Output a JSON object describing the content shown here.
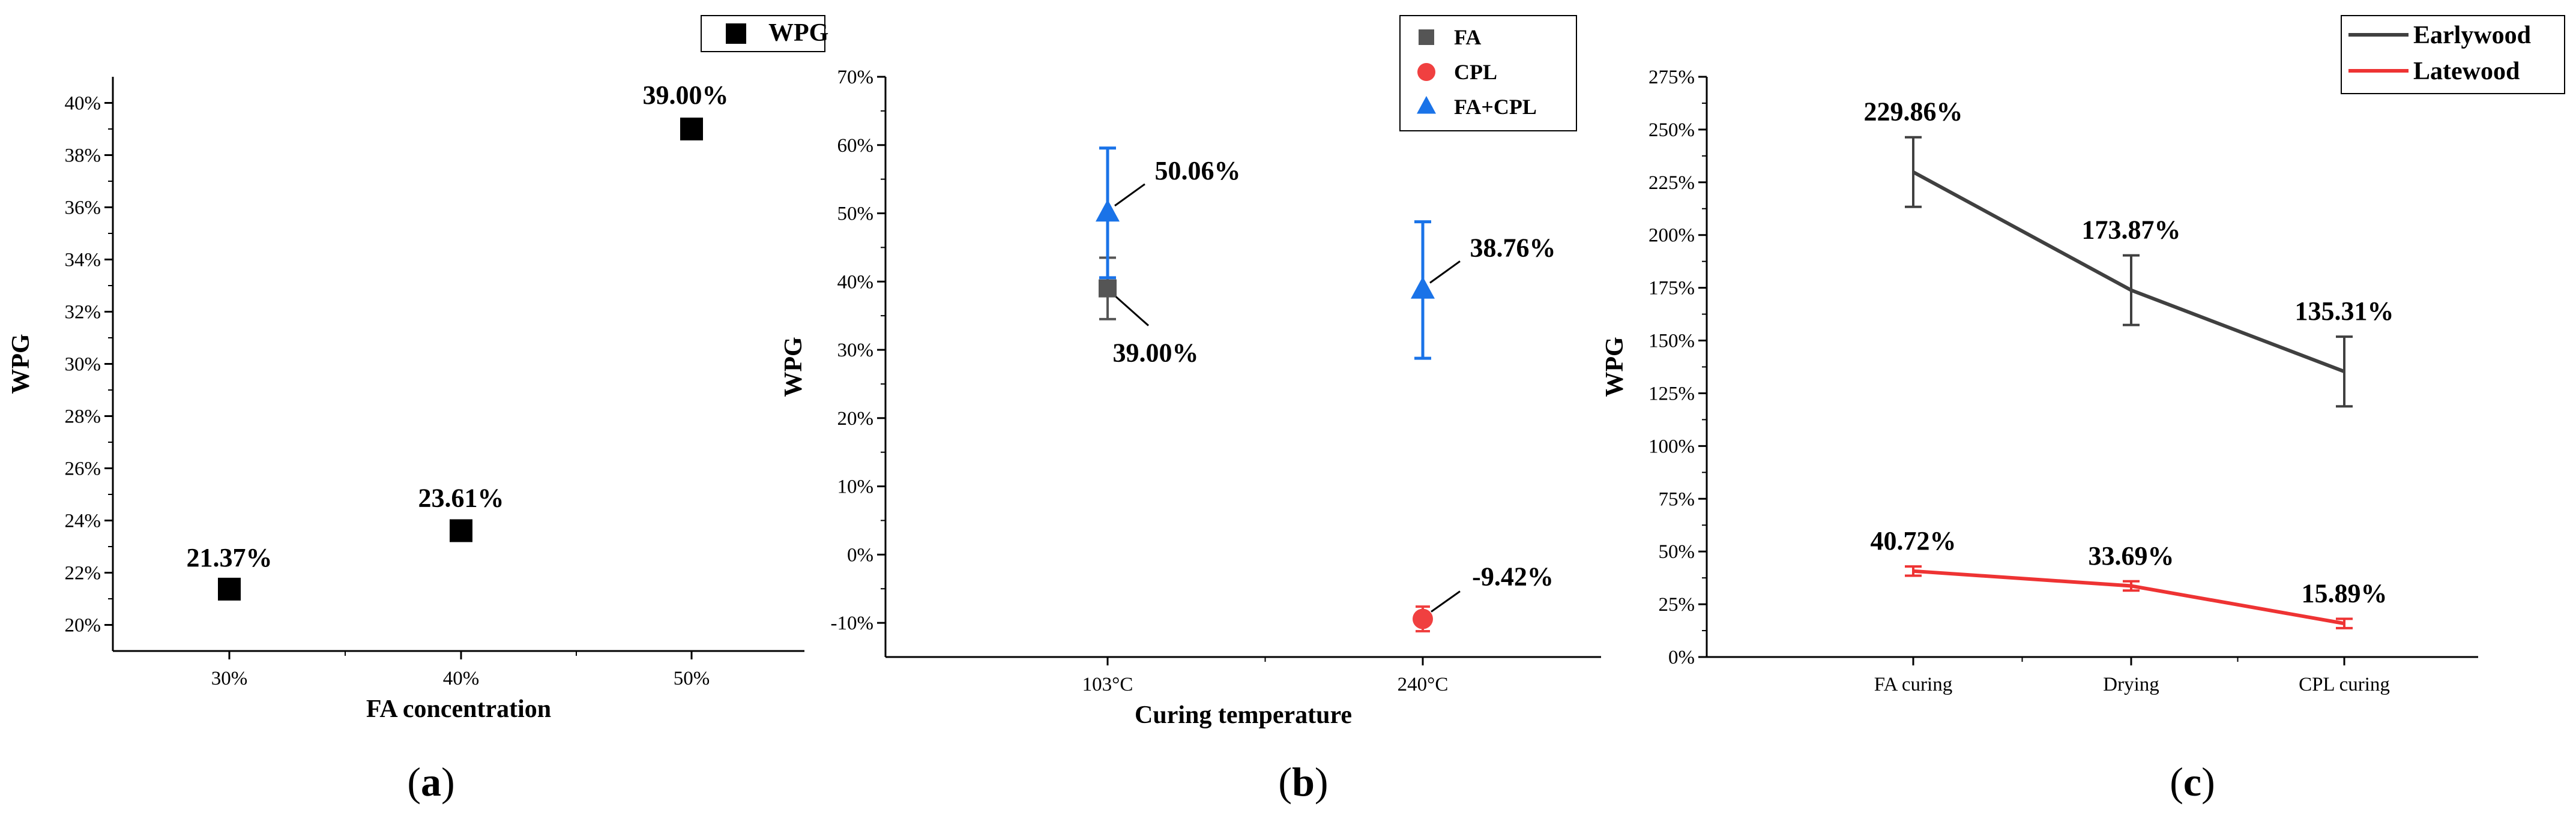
{
  "chart_data": [
    {
      "panel": "a",
      "type": "scatter",
      "xlabel": "FA concentration",
      "ylabel": "WPG",
      "categories": [
        "30%",
        "40%",
        "50%"
      ],
      "ylim": [
        0.19,
        0.41
      ],
      "yticks": [
        0.2,
        0.22,
        0.24,
        0.26,
        0.28,
        0.3,
        0.32,
        0.34,
        0.36,
        0.38,
        0.4
      ],
      "ytick_labels": [
        "20%",
        "22%",
        "24%",
        "26%",
        "28%",
        "30%",
        "32%",
        "34%",
        "36%",
        "38%",
        "40%"
      ],
      "legend": [
        "WPG"
      ],
      "legend_position": "top-right",
      "colors": {
        "marker": "#000000"
      },
      "series": [
        {
          "name": "WPG",
          "values": [
            0.2137,
            0.2361,
            0.39
          ],
          "labels": [
            "21.37%",
            "23.61%",
            "39.00%"
          ]
        }
      ]
    },
    {
      "panel": "b",
      "type": "scatter",
      "xlabel": "Curing temperature",
      "ylabel": "WPG",
      "categories": [
        "103°C",
        "240°C"
      ],
      "ylim": [
        -0.15,
        0.7
      ],
      "yticks": [
        -0.1,
        0.0,
        0.1,
        0.2,
        0.3,
        0.4,
        0.5,
        0.6,
        0.7
      ],
      "ytick_labels": [
        "-10%",
        "0%",
        "10%",
        "20%",
        "30%",
        "40%",
        "50%",
        "60%",
        "70%"
      ],
      "legend": [
        "FA",
        "CPL",
        "FA+CPL"
      ],
      "legend_position": "top-right",
      "colors": {
        "FA": "#555555",
        "CPL": "#f04040",
        "FA+CPL": "#1a73e8"
      },
      "series": [
        {
          "name": "FA",
          "values": [
            0.39,
            null
          ],
          "errors": [
            0.045,
            null
          ],
          "labels": [
            "39.00%",
            ""
          ]
        },
        {
          "name": "CPL",
          "values": [
            null,
            -0.0942
          ],
          "errors": [
            null,
            0.018
          ],
          "labels": [
            "",
            "-9.42%"
          ]
        },
        {
          "name": "FA+CPL",
          "values": [
            0.5006,
            0.3876
          ],
          "errors": [
            0.095,
            0.1
          ],
          "labels": [
            "50.06%",
            "38.76%"
          ]
        }
      ]
    },
    {
      "panel": "c",
      "type": "line",
      "xlabel": "",
      "ylabel": "WPG",
      "categories": [
        "FA curing",
        "Drying",
        "CPL curing"
      ],
      "ylim": [
        0,
        2.75
      ],
      "yticks": [
        0,
        0.25,
        0.5,
        0.75,
        1.0,
        1.25,
        1.5,
        1.75,
        2.0,
        2.25,
        2.5,
        2.75
      ],
      "ytick_labels": [
        "0%",
        "25%",
        "50%",
        "75%",
        "100%",
        "125%",
        "150%",
        "175%",
        "200%",
        "225%",
        "250%",
        "275%"
      ],
      "legend": [
        "Earlywood",
        "Latewood"
      ],
      "legend_position": "top-right",
      "colors": {
        "Earlywood": "#404040",
        "Latewood": "#ee3333"
      },
      "series": [
        {
          "name": "Earlywood",
          "values": [
            2.2986,
            1.7387,
            1.3531
          ],
          "errors": [
            0.165,
            0.165,
            0.165
          ],
          "labels": [
            "229.86%",
            "173.87%",
            "135.31%"
          ]
        },
        {
          "name": "Latewood",
          "values": [
            0.4072,
            0.3369,
            0.1589
          ],
          "errors": [
            0.022,
            0.022,
            0.022
          ],
          "labels": [
            "40.72%",
            "33.69%",
            "15.89%"
          ]
        }
      ]
    }
  ],
  "panel_labels": {
    "a": {
      "open": "(",
      "letter": "a",
      "close": ")"
    },
    "b": {
      "open": "(",
      "letter": "b",
      "close": ")"
    },
    "c": {
      "open": "(",
      "letter": "c",
      "close": ")"
    }
  }
}
